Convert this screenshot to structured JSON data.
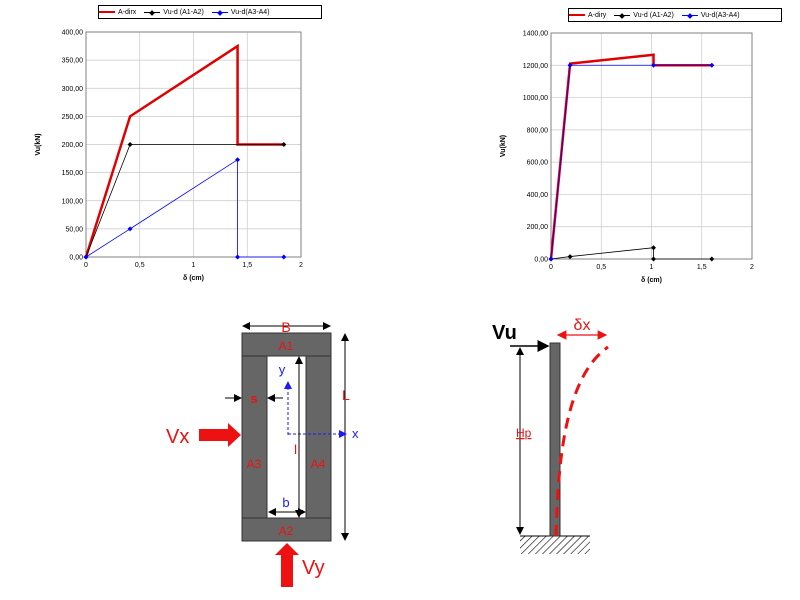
{
  "chart_data": [
    {
      "type": "line",
      "xlabel": "δ (cm)",
      "ylabel": "Vu(kN)",
      "xlim": [
        0,
        2
      ],
      "ylim": [
        0,
        400
      ],
      "xticks": [
        "0",
        "0,5",
        "1",
        "1,5",
        "2"
      ],
      "yticks": [
        "0,00",
        "50,00",
        "100,00",
        "150,00",
        "200,00",
        "250,00",
        "300,00",
        "350,00",
        "400,00"
      ],
      "legend_position": "top",
      "series": [
        {
          "name": "A-dirx",
          "color": "#e00000",
          "marker": "none",
          "x": [
            0,
            0.41,
            1.41,
            1.41,
            1.84
          ],
          "y": [
            0,
            250,
            375,
            200,
            200
          ]
        },
        {
          "name": "Vu-d (A1-A2)",
          "color": "#000000",
          "marker": "diamond",
          "x": [
            0,
            0.41,
            1.84
          ],
          "y": [
            0,
            200,
            200
          ]
        },
        {
          "name": "Vu-d(A3-A4)",
          "color": "#0000ff",
          "marker": "diamond",
          "x": [
            0,
            0.41,
            1.41,
            1.41,
            1.84
          ],
          "y": [
            0,
            50,
            173,
            0,
            0
          ]
        }
      ]
    },
    {
      "type": "line",
      "xlabel": "δ (cm)",
      "ylabel": "Vu(kN)",
      "xlim": [
        0,
        2
      ],
      "ylim": [
        0,
        1400
      ],
      "xticks": [
        "0",
        "0,5",
        "1",
        "1,5",
        "2"
      ],
      "yticks": [
        "0,00",
        "200,00",
        "400,00",
        "600,00",
        "800,00",
        "1000,00",
        "1200,00",
        "1400,00"
      ],
      "legend_position": "top",
      "series": [
        {
          "name": "A-diry",
          "color": "#e00000",
          "marker": "none",
          "x": [
            0,
            0.19,
            1.02,
            1.02,
            1.6
          ],
          "y": [
            0,
            1210,
            1265,
            1200,
            1200
          ]
        },
        {
          "name": "Vu-d (A1-A2)",
          "color": "#000000",
          "marker": "diamond",
          "x": [
            0,
            0.19,
            1.02,
            1.02,
            1.6
          ],
          "y": [
            0,
            15,
            70,
            0,
            0
          ]
        },
        {
          "name": "Vu-d(A3-A4)",
          "color": "#0000ff",
          "marker": "diamond",
          "x": [
            0,
            0.19,
            1.02,
            1.6
          ],
          "y": [
            0,
            1200,
            1200,
            1200
          ]
        }
      ]
    }
  ],
  "diagram_wall": {
    "labels": {
      "B": "B",
      "L": "L",
      "A1": "A1",
      "A2": "A2",
      "A3": "A3",
      "A4": "A4",
      "s": "s",
      "y": "y",
      "x": "x",
      "l": "l",
      "b": "b",
      "Vx": "Vx",
      "Vy": "Vy"
    },
    "colors": {
      "wall": "#666666",
      "red": "#ee1111",
      "blue": "#1a1aff"
    }
  },
  "diagram_column": {
    "labels": {
      "Vu": "Vu",
      "delta": "δx",
      "Hp": "Hp"
    },
    "colors": {
      "column": "#666666",
      "red": "#ee1111"
    }
  }
}
